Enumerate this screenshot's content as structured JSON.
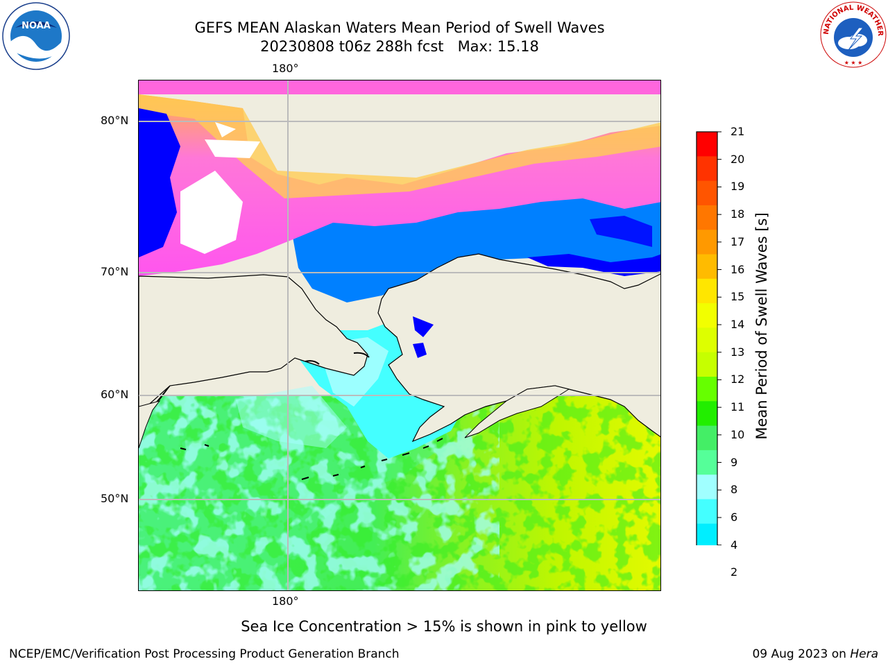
{
  "title": {
    "line1": "GEFS MEAN Alaskan Waters Mean Period of Swell Waves",
    "line2": "20230808 t06z 288h fcst   Max: 15.18"
  },
  "map": {
    "lon_label_top": "180°",
    "lon_label_bottom": "180°",
    "lat_labels": [
      "80°N",
      "70°N",
      "60°N",
      "50°N"
    ],
    "land_color": "#efeddf"
  },
  "colorbar": {
    "title": "Mean Period of Swell Waves [s]",
    "ticks": [
      "21",
      "20",
      "19",
      "18",
      "17",
      "16",
      "15",
      "14",
      "13",
      "12",
      "11",
      "10",
      "9",
      "8",
      "6",
      "4",
      "2"
    ],
    "colors": [
      "#ff0000",
      "#ff3300",
      "#ff5500",
      "#ff7700",
      "#ff9900",
      "#ffbb00",
      "#ffe600",
      "#f2ff00",
      "#ddff00",
      "#c6ff00",
      "#66ff00",
      "#22ee00",
      "#44ee66",
      "#55ff99",
      "#a0ffff",
      "#44ffff",
      "#00eeff",
      "#0080ff"
    ],
    "extend_color": "#0000ff"
  },
  "caption": "Sea Ice Concentration > 15% is shown in pink to yellow",
  "footer": {
    "left": "NCEP/EMC/Verification Post Processing Product Generation Branch",
    "date": "09 Aug 2023 on ",
    "machine": "Hera"
  },
  "logos": {
    "noaa": "NOAA",
    "nws_text": "NATIONAL WEATHER SERVICE"
  }
}
